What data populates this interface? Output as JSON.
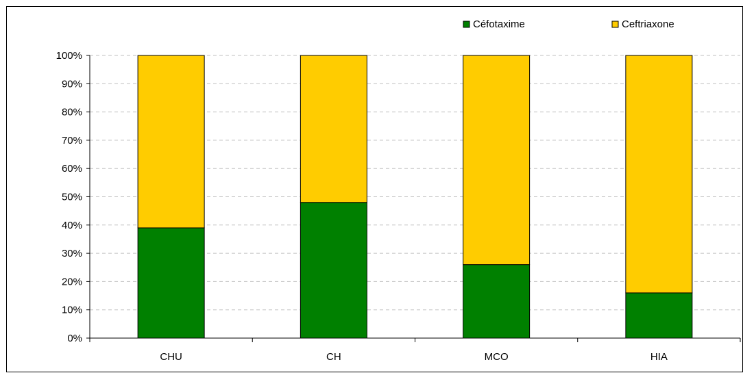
{
  "chart_data": {
    "type": "bar",
    "stacked": true,
    "percent_stacked": true,
    "categories": [
      "CHU",
      "CH",
      "MCO",
      "HIA"
    ],
    "series": [
      {
        "name": "Céfotaxime",
        "color": "#008000",
        "values": [
          39,
          48,
          26,
          16
        ]
      },
      {
        "name": "Ceftriaxone",
        "color": "#FFCC00",
        "values": [
          61,
          52,
          74,
          84
        ]
      }
    ],
    "ylim": [
      0,
      100
    ],
    "yticks": [
      "0%",
      "10%",
      "20%",
      "30%",
      "40%",
      "50%",
      "60%",
      "70%",
      "80%",
      "90%",
      "100%"
    ],
    "grid": true,
    "legend_position": "top-right",
    "xlabel": "",
    "ylabel": ""
  }
}
